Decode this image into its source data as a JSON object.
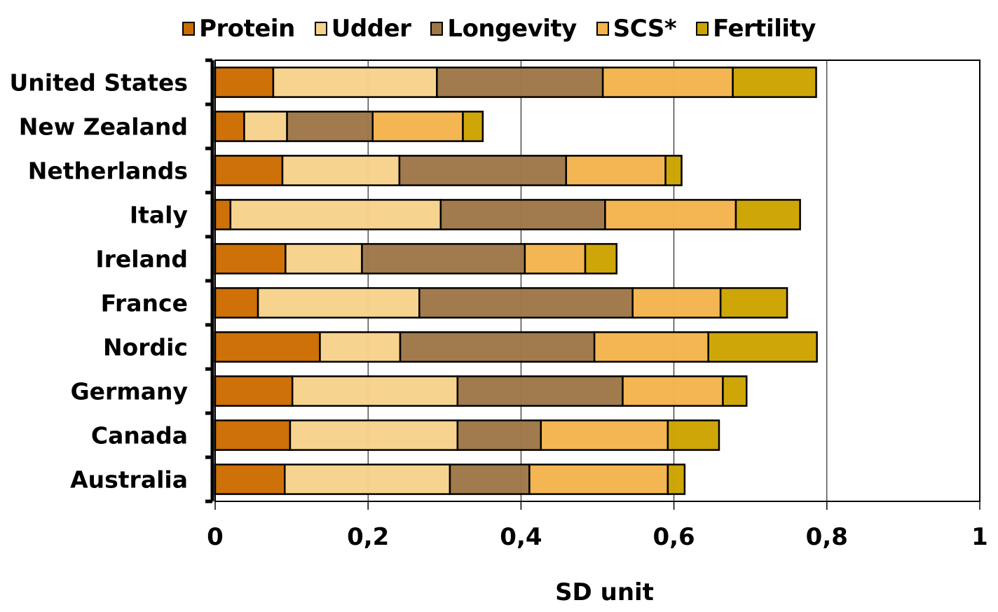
{
  "chart_data": {
    "type": "bar",
    "orientation": "horizontal",
    "stacked": true,
    "title": "",
    "xlabel": "SD unit",
    "ylabel": "",
    "xlim": [
      0,
      1
    ],
    "xticks": [
      0,
      0.2,
      0.4,
      0.6,
      0.8,
      1
    ],
    "xtick_labels": [
      "0",
      "0,2",
      "0,4",
      "0,6",
      "0,8",
      "1"
    ],
    "grid": "vertical",
    "legend_position": "top",
    "categories": [
      "United States",
      "New Zealand",
      "Netherlands",
      "Italy",
      "Ireland",
      "France",
      "Nordic",
      "Germany",
      "Canada",
      "Australia"
    ],
    "series": [
      {
        "name": "Protein",
        "color": "#CC6C00",
        "values": [
          0.076,
          0.038,
          0.088,
          0.02,
          0.092,
          0.056,
          0.137,
          0.101,
          0.098,
          0.091
        ]
      },
      {
        "name": "Udder",
        "color": "#F7D28C",
        "values": [
          0.214,
          0.056,
          0.153,
          0.275,
          0.1,
          0.211,
          0.105,
          0.216,
          0.219,
          0.216
        ]
      },
      {
        "name": "Longevity",
        "color": "#9E7747",
        "values": [
          0.217,
          0.112,
          0.218,
          0.215,
          0.213,
          0.279,
          0.254,
          0.216,
          0.109,
          0.104
        ]
      },
      {
        "name": "SCS*",
        "color": "#F3B44C",
        "values": [
          0.17,
          0.118,
          0.13,
          0.171,
          0.079,
          0.115,
          0.149,
          0.131,
          0.166,
          0.181
        ]
      },
      {
        "name": "Fertility",
        "color": "#CCA300",
        "values": [
          0.109,
          0.026,
          0.021,
          0.084,
          0.041,
          0.087,
          0.142,
          0.031,
          0.067,
          0.022
        ]
      }
    ]
  }
}
